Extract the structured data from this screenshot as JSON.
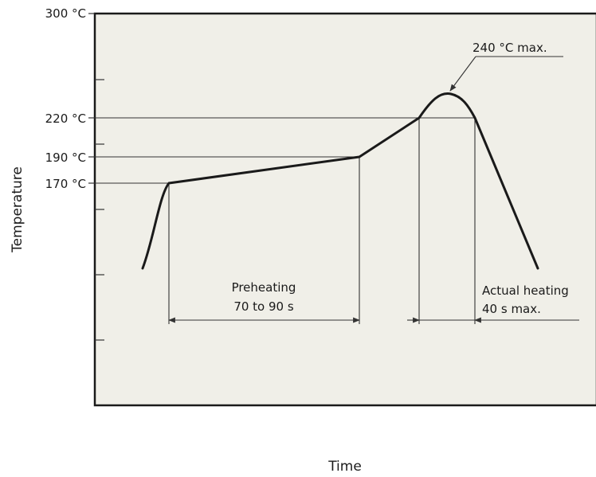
{
  "diagram": {
    "ylabel": "Temperature",
    "xlabel": "Time",
    "y_tick_labels": [
      "300 °C",
      "220 °C",
      "190 °C",
      "170 °C"
    ],
    "peak_label": "240 °C max.",
    "preheat_label_line1": "Preheating",
    "preheat_label_line2": "70 to 90 s",
    "heating_label_line1": "Actual heating",
    "heating_label_line2": "40 s max."
  },
  "colors": {
    "plot_background": "#f0efe8",
    "curve": "#1a1a1a",
    "guide_lines": "#333333"
  }
}
